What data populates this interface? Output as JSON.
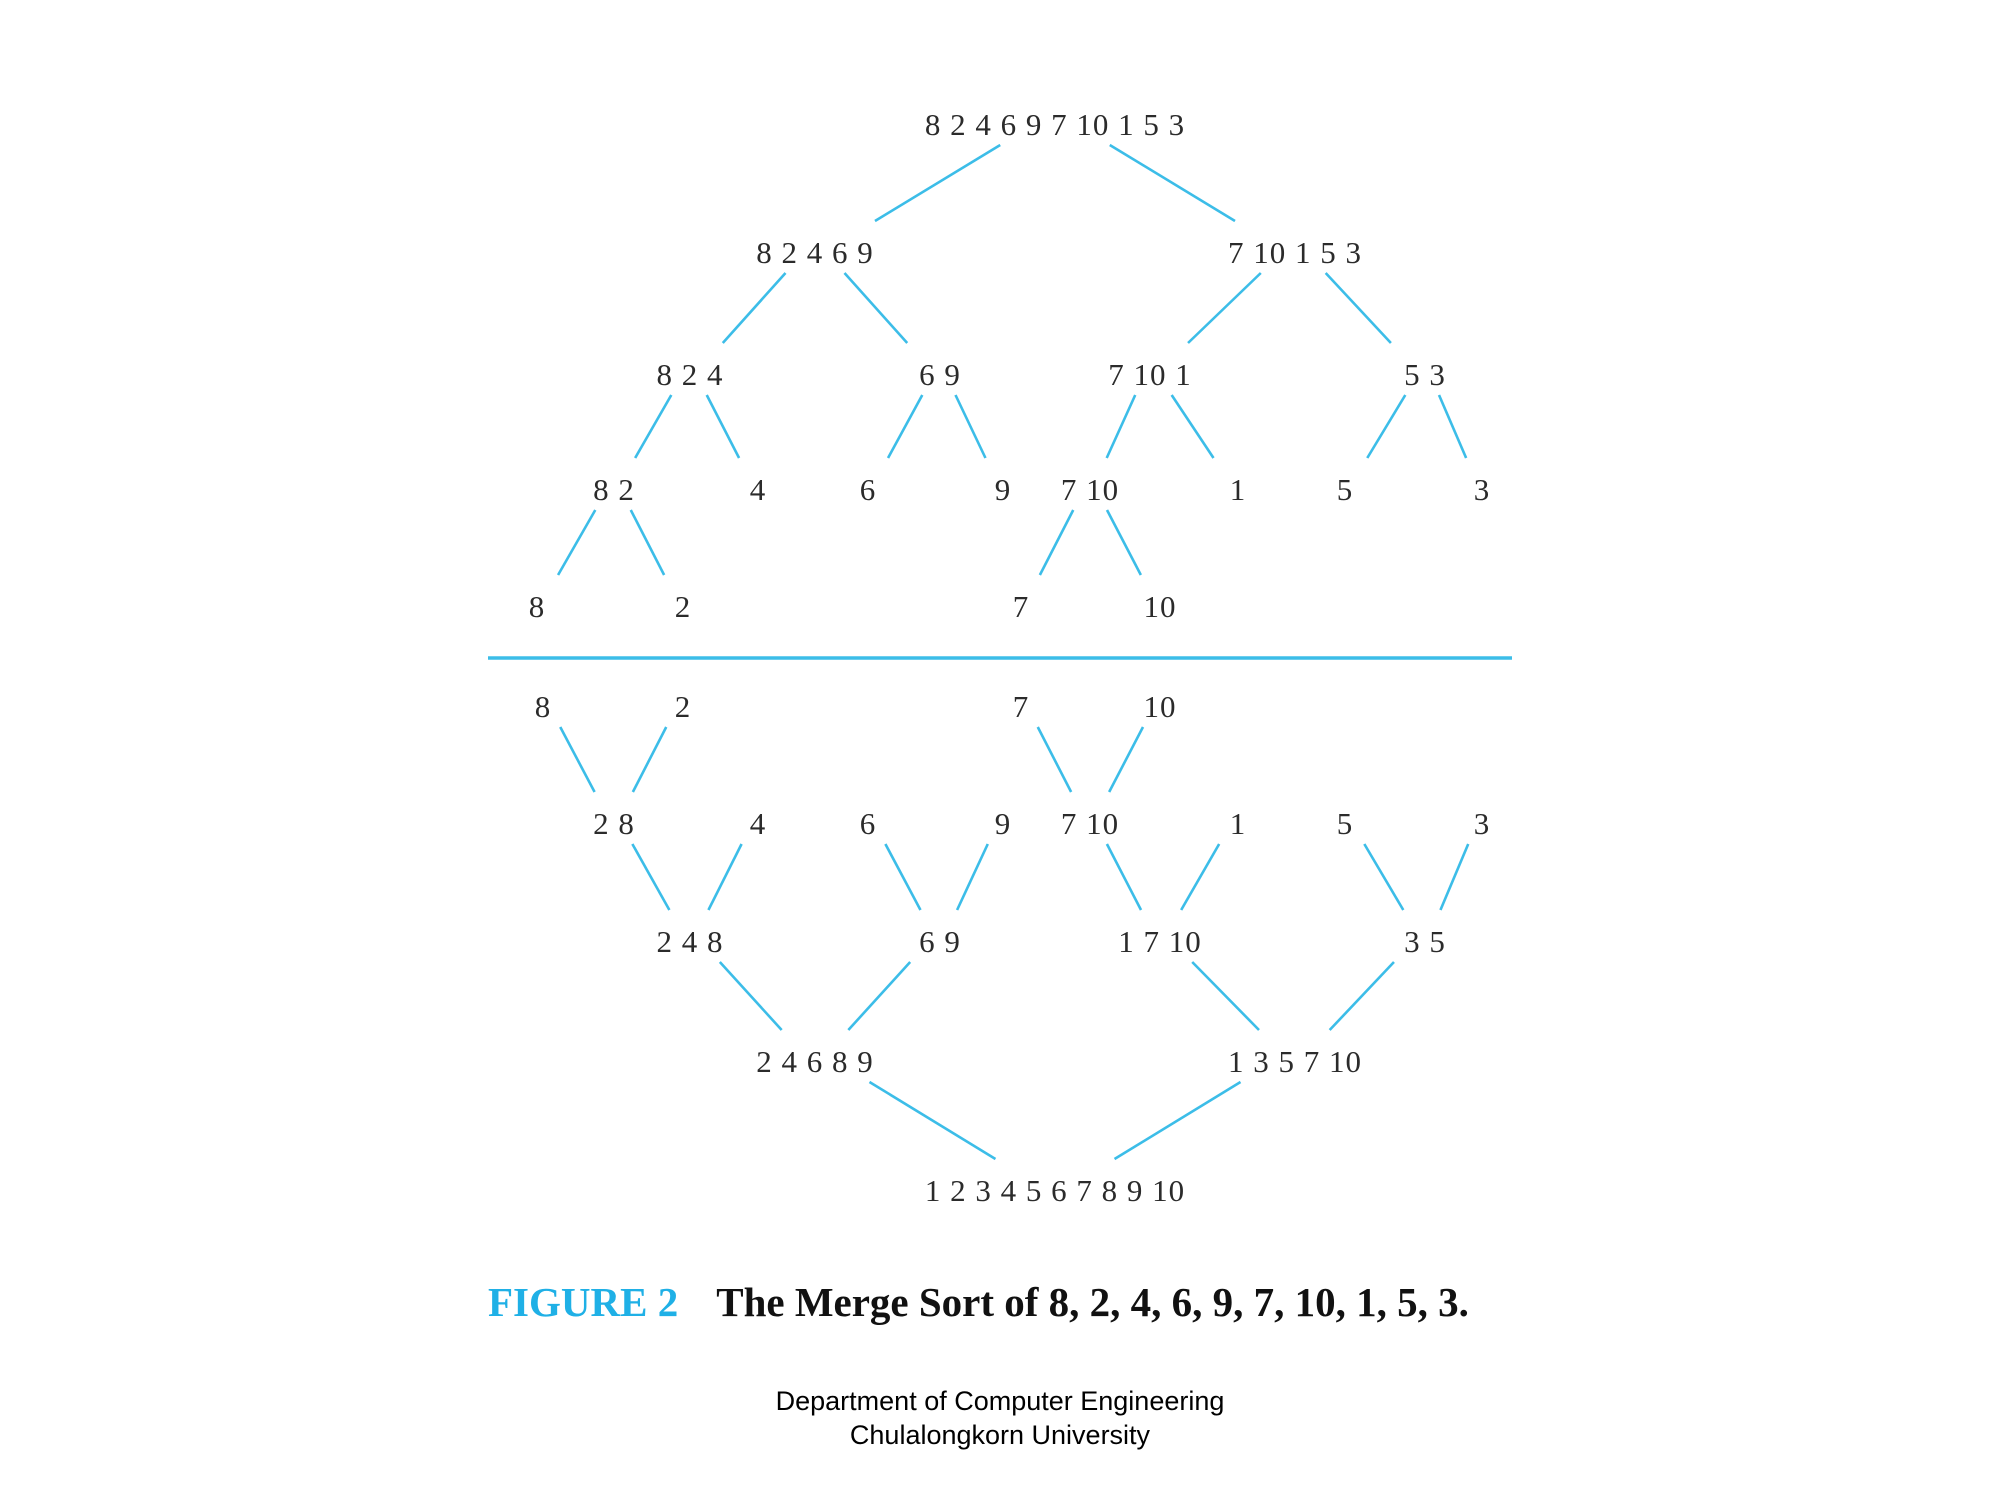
{
  "split_levels": [
    [
      "8 2 4 6 9 7 10 1 5 3"
    ],
    [
      "8 2 4 6 9",
      "7 10 1 5 3"
    ],
    [
      "8 2 4",
      "6 9",
      "7 10 1",
      "5 3"
    ],
    [
      "8 2",
      "4",
      "6",
      "9",
      "7 10",
      "1",
      "5",
      "3"
    ],
    [
      "8",
      "2",
      "7",
      "10"
    ]
  ],
  "merge_levels": [
    [
      "8",
      "2",
      "7",
      "10"
    ],
    [
      "2 8",
      "4",
      "6",
      "9",
      "7 10",
      "1",
      "5",
      "3"
    ],
    [
      "2 4 8",
      "6 9",
      "1 7 10",
      "3 5"
    ],
    [
      "2 4 6 8 9",
      "1 3 5 7 10"
    ],
    [
      "1 2 3 4 5 6 7 8 9 10"
    ]
  ],
  "caption": {
    "label": "FIGURE 2",
    "text": "The Merge Sort of 8, 2, 4, 6, 9, 7, 10, 1, 5, 3."
  },
  "footer": {
    "line1": "Department of Computer Engineering",
    "line2": "Chulalongkorn University"
  },
  "colors": {
    "edge": "#3cbde8",
    "caption_label": "#1fb0e6",
    "text": "#2b2b2b"
  }
}
